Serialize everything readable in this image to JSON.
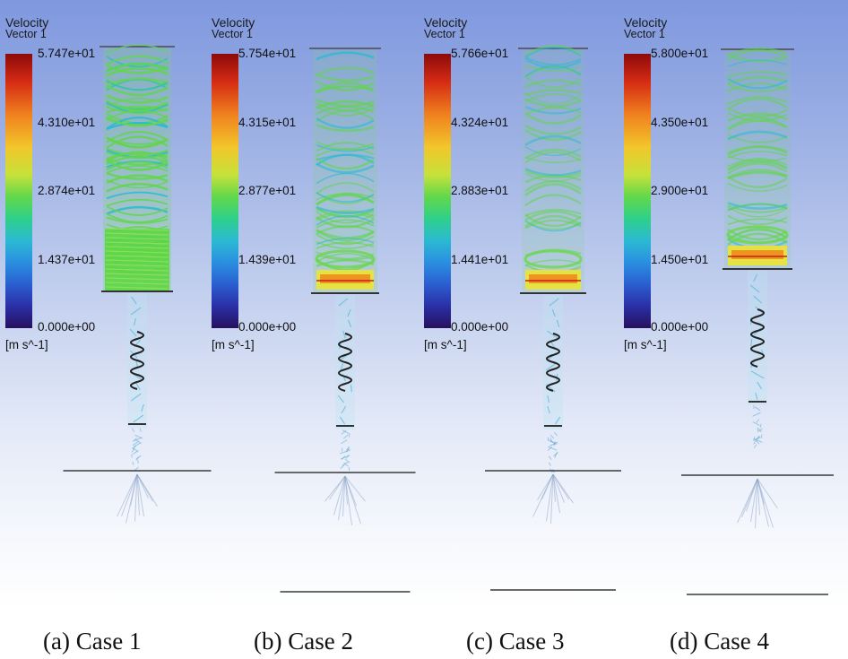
{
  "legend_title": "Velocity",
  "legend_subtitle": "Vector 1",
  "unit": "[m s^-1]",
  "panels": [
    {
      "caption": "(a) Case 1",
      "ticks": [
        "5.747e+01",
        "4.310e+01",
        "2.874e+01",
        "1.437e+01",
        "0.000e+00"
      ]
    },
    {
      "caption": "(b) Case 2",
      "ticks": [
        "5.754e+01",
        "4.315e+01",
        "2.877e+01",
        "1.439e+01",
        "0.000e+00"
      ]
    },
    {
      "caption": "(c) Case 3",
      "ticks": [
        "5.766e+01",
        "4.324e+01",
        "2.883e+01",
        "1.441e+01",
        "0.000e+00"
      ]
    },
    {
      "caption": "(d) Case 4",
      "ticks": [
        "5.800e+01",
        "4.350e+01",
        "2.900e+01",
        "1.450e+01",
        "0.000e+00"
      ]
    }
  ]
}
